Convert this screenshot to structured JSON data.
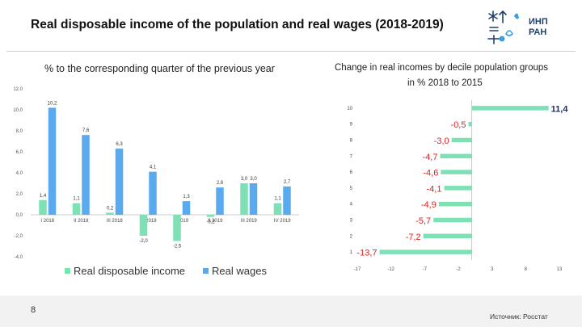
{
  "slide": {
    "title": "Real disposable income of the population and real wages (2018-2019)",
    "page_number": "8",
    "source": "Источник: Росстат"
  },
  "logo": {
    "line1": "ИНП",
    "line2": "РАН"
  },
  "colors": {
    "income": "#7ee0b5",
    "wages": "#5aaaf0",
    "decile_bar": "#7ee0b5",
    "negative_label": "#e02020",
    "positive_label": "#1a2a5a"
  },
  "chart_data": [
    {
      "type": "bar",
      "title": "% to the corresponding quarter of the previous year",
      "categories": [
        "I 2018",
        "II 2018",
        "III 2018",
        "IV 2018",
        "I 2019",
        "II 2019",
        "III 2019",
        "IV 2019"
      ],
      "series": [
        {
          "name": "Real disposable income",
          "values": [
            1.4,
            1.1,
            0.2,
            -2.0,
            -2.5,
            -0.2,
            3.0,
            1.1
          ],
          "labels": [
            "1,4",
            "1,1",
            "0,2",
            "-2,0",
            "-2,5",
            "-0,2",
            "3,0",
            "1,1"
          ]
        },
        {
          "name": "Real wages",
          "values": [
            10.2,
            7.6,
            6.3,
            4.1,
            1.3,
            2.6,
            3.0,
            2.7
          ],
          "labels": [
            "10,2",
            "7,6",
            "6,3",
            "4,1",
            "1,3",
            "2,6",
            "3,0",
            "2,7"
          ]
        }
      ],
      "ylim": [
        -4,
        12
      ],
      "yticks": [
        "-4,0",
        "-2,0",
        "0,0",
        "2,0",
        "4,0",
        "6,0",
        "8,0",
        "10,0",
        "12,0"
      ],
      "legend_position": "bottom"
    },
    {
      "type": "bar",
      "orientation": "horizontal",
      "title": "Change in real incomes by decile population groups",
      "subtitle": "in % 2018 to 2015",
      "categories": [
        "1",
        "2",
        "3",
        "4",
        "5",
        "6",
        "7",
        "8",
        "9",
        "10"
      ],
      "values": [
        -13.7,
        -7.2,
        -5.7,
        -4.9,
        -4.1,
        -4.6,
        -4.7,
        -3.0,
        -0.5,
        11.4
      ],
      "labels": [
        "-13,7",
        "-7,2",
        "-5,7",
        "-4,9",
        "-4,1",
        "-4,6",
        "-4,7",
        "-3,0",
        "-0,5",
        "11,4"
      ],
      "xlim": [
        -17,
        13
      ],
      "xticks": [
        "-17",
        "-12",
        "-7",
        "-2",
        "3",
        "8",
        "13"
      ]
    }
  ]
}
